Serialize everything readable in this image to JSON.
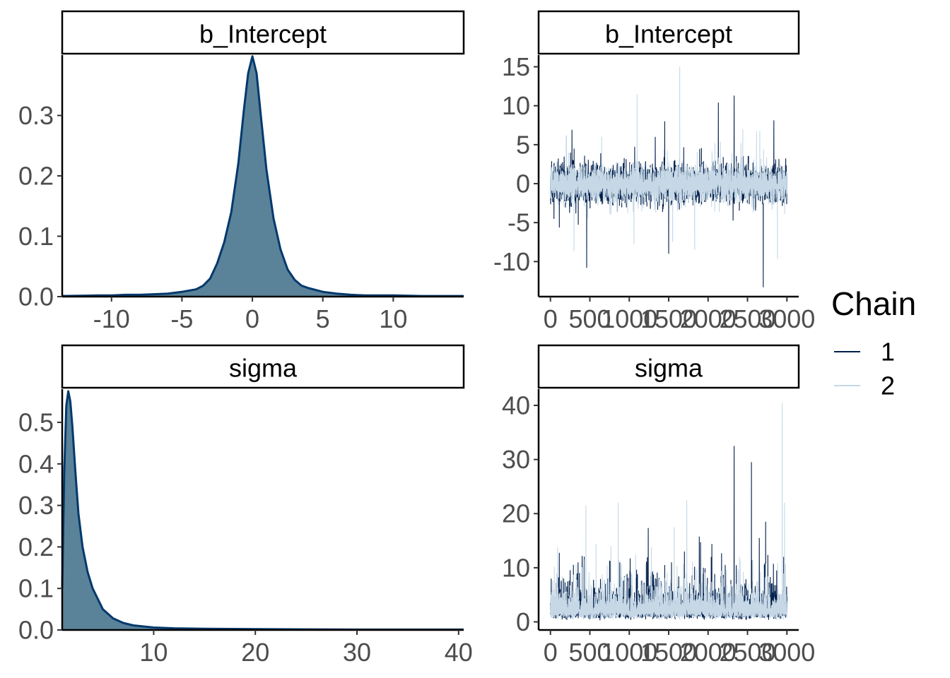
{
  "colors": {
    "chain_1": "#011f4b",
    "chain_2": "#c6d8e6",
    "density_fill": "#5a8299",
    "density_line": "#03396c"
  },
  "legend": {
    "title": "Chain",
    "entries": [
      "1",
      "2"
    ]
  },
  "chart_data": [
    {
      "type": "area",
      "panel": "density",
      "title": "b_Intercept",
      "xlim": [
        -13.5,
        15
      ],
      "ylim": [
        0,
        0.4
      ],
      "xticks": [
        -10,
        -5,
        0,
        5,
        10
      ],
      "xtick_labels": [
        "-10",
        "-5",
        "0",
        "5",
        "10"
      ],
      "yticks": [
        0.0,
        0.1,
        0.2,
        0.3
      ],
      "ytick_labels": [
        "0.0",
        "0.1",
        "0.2",
        "0.3"
      ],
      "x": [
        -13.5,
        -11,
        -10,
        -9,
        -8,
        -7,
        -6,
        -5,
        -4,
        -3.5,
        -3,
        -2.5,
        -2,
        -1.5,
        -1,
        -0.6,
        -0.3,
        0,
        0.3,
        0.6,
        1,
        1.5,
        2,
        2.5,
        3,
        3.5,
        4,
        5,
        6,
        7,
        8,
        10,
        12,
        15
      ],
      "y": [
        0.001,
        0.002,
        0.002,
        0.003,
        0.003,
        0.004,
        0.005,
        0.008,
        0.012,
        0.018,
        0.03,
        0.055,
        0.09,
        0.14,
        0.22,
        0.31,
        0.37,
        0.398,
        0.37,
        0.3,
        0.21,
        0.13,
        0.078,
        0.045,
        0.028,
        0.018,
        0.014,
        0.008,
        0.005,
        0.003,
        0.002,
        0.002,
        0.001,
        0.001
      ]
    },
    {
      "type": "line",
      "panel": "trace",
      "title": "b_Intercept",
      "xlim": [
        -150,
        3150
      ],
      "ylim": [
        -14.5,
        16.5
      ],
      "xticks": [
        0,
        500,
        1000,
        1500,
        2000,
        2500,
        3000
      ],
      "xtick_labels": [
        "0",
        "500",
        "1000",
        "1500",
        "2000",
        "2500",
        "3000"
      ],
      "yticks": [
        -10,
        -5,
        0,
        5,
        10,
        15
      ],
      "ytick_labels": [
        "-10",
        "-5",
        "0",
        "5",
        "10",
        "15"
      ],
      "n_iter": 3000,
      "series": [
        {
          "name": "1",
          "scale": 1.2,
          "spike_prob": 0.02,
          "spike_scale": 3.2,
          "seed": 11,
          "spikes": [
            [
              460,
              -10.8
            ],
            [
              1500,
              -9.0
            ],
            [
              1450,
              8.0
            ],
            [
              2130,
              10.4
            ],
            [
              2330,
              11.3
            ],
            [
              2700,
              -13.3
            ],
            [
              1330,
              6.0
            ],
            [
              300,
              4.5
            ]
          ]
        },
        {
          "name": "2",
          "scale": 1.1,
          "spike_prob": 0.02,
          "spike_scale": 3.0,
          "seed": 29,
          "spikes": [
            [
              1100,
              11.5
            ],
            [
              1640,
              15.0
            ],
            [
              1830,
              -8.5
            ],
            [
              1550,
              -7.5
            ],
            [
              2880,
              -9.7
            ],
            [
              650,
              6.0
            ],
            [
              2440,
              7.0
            ],
            [
              200,
              6.2
            ]
          ]
        }
      ]
    },
    {
      "type": "area",
      "panel": "density",
      "title": "sigma",
      "xlim": [
        1,
        40.5
      ],
      "ylim": [
        0,
        0.58
      ],
      "xticks": [
        10,
        20,
        30,
        40
      ],
      "xtick_labels": [
        "10",
        "20",
        "30",
        "40"
      ],
      "yticks": [
        0.0,
        0.1,
        0.2,
        0.3,
        0.4,
        0.5
      ],
      "ytick_labels": [
        "0.0",
        "0.1",
        "0.2",
        "0.3",
        "0.4",
        "0.5"
      ],
      "x": [
        1,
        1.2,
        1.4,
        1.6,
        1.8,
        2.0,
        2.3,
        2.6,
        3.0,
        3.5,
        4,
        4.5,
        5,
        6,
        7,
        8,
        10,
        12,
        15,
        20,
        25,
        30,
        35,
        40.5
      ],
      "y": [
        0.1,
        0.38,
        0.54,
        0.575,
        0.55,
        0.49,
        0.38,
        0.28,
        0.2,
        0.14,
        0.1,
        0.075,
        0.05,
        0.028,
        0.017,
        0.011,
        0.006,
        0.004,
        0.003,
        0.002,
        0.0015,
        0.001,
        0.001,
        0.001
      ]
    },
    {
      "type": "line",
      "panel": "trace",
      "title": "sigma",
      "xlim": [
        -150,
        3150
      ],
      "ylim": [
        -1.5,
        43
      ],
      "xticks": [
        0,
        500,
        1000,
        1500,
        2000,
        2500,
        3000
      ],
      "xtick_labels": [
        "0",
        "500",
        "1000",
        "1500",
        "2000",
        "2500",
        "3000"
      ],
      "yticks": [
        0,
        10,
        20,
        30,
        40
      ],
      "ytick_labels": [
        "0",
        "10",
        "20",
        "30",
        "40"
      ],
      "n_iter": 3000,
      "series": [
        {
          "name": "1",
          "positive": true,
          "base": 2.2,
          "scale": 0.55,
          "spike_prob": 0.025,
          "spike_scale": 5,
          "seed": 5,
          "spikes": [
            [
              2330,
              32.5
            ],
            [
              2550,
              29.5
            ],
            [
              2730,
              18.5
            ],
            [
              2650,
              15.5
            ],
            [
              1700,
              13.0
            ],
            [
              2040,
              12.0
            ],
            [
              1940,
              10.0
            ],
            [
              350,
              11.0
            ],
            [
              880,
              11.0
            ],
            [
              1450,
              10.5
            ],
            [
              2870,
              9.5
            ],
            [
              10,
              8.0
            ]
          ]
        },
        {
          "name": "2",
          "positive": true,
          "base": 2.2,
          "scale": 0.55,
          "spike_prob": 0.025,
          "spike_scale": 5,
          "seed": 41,
          "spikes": [
            [
              2940,
              40.5
            ],
            [
              2970,
              22.0
            ],
            [
              450,
              21.5
            ],
            [
              860,
              22.0
            ],
            [
              1730,
              22.5
            ],
            [
              1570,
              17.5
            ],
            [
              1080,
              12.5
            ],
            [
              2180,
              12.0
            ],
            [
              2400,
              12.0
            ],
            [
              150,
              8.5
            ]
          ]
        }
      ]
    }
  ]
}
